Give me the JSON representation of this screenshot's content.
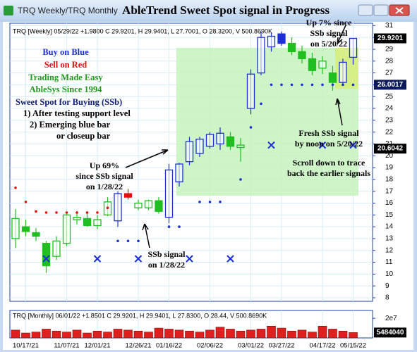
{
  "window": {
    "tab": "TRQ Weekly/TRQ Monthly"
  },
  "chart_data": [
    {
      "type": "candlestick",
      "title": "AbleTrend Sweet Spot signal in Progress",
      "header": "TRQ [Weekly] 05/29/22 +1.9800 C 29.9201, H 29.9401, L 27.7001, O 28.3200, V 500.8690K",
      "open": [
        13.0,
        14.0,
        13.5,
        12.6,
        11.5,
        12.6,
        14.6,
        14.7,
        14.1,
        15.0,
        14.5,
        16.8,
        15.6,
        15.6,
        16.2,
        14.8,
        17.8,
        19.5,
        20.2,
        20.8,
        21.0,
        21.6,
        20.7,
        24.0,
        27.0,
        29.2,
        30.3,
        29.5,
        28.8,
        28.2,
        27.4,
        27.0,
        26.2,
        28.32
      ],
      "high": [
        15.5,
        14.6,
        13.9,
        12.8,
        13.2,
        15.3,
        15.3,
        15.1,
        15.0,
        16.5,
        17.0,
        17.2,
        16.3,
        16.3,
        16.5,
        19.3,
        19.4,
        21.6,
        21.6,
        22.0,
        22.4,
        22.0,
        21.5,
        27.3,
        30.5,
        30.4,
        30.5,
        30.0,
        29.3,
        28.7,
        28.4,
        27.6,
        28.2,
        29.9401
      ],
      "low": [
        12.2,
        13.2,
        12.8,
        10.1,
        11.2,
        12.4,
        14.2,
        14.0,
        13.8,
        14.9,
        14.0,
        16.3,
        15.4,
        15.4,
        15.1,
        14.3,
        17.4,
        19.2,
        19.9,
        20.6,
        20.5,
        20.5,
        19.5,
        23.5,
        26.8,
        28.8,
        29.3,
        28.5,
        27.8,
        26.8,
        26.9,
        25.5,
        25.9,
        27.7001
      ],
      "close": [
        14.7,
        13.6,
        13.2,
        10.7,
        12.8,
        15.0,
        14.8,
        14.1,
        14.6,
        16.1,
        16.8,
        16.5,
        16.0,
        16.2,
        15.3,
        18.8,
        19.3,
        21.2,
        21.4,
        21.8,
        21.9,
        20.8,
        20.9,
        26.9,
        30.0,
        30.1,
        29.5,
        28.8,
        28.2,
        27.2,
        28.0,
        26.2,
        27.9,
        29.9201
      ],
      "colors": [
        "#1fbf1f",
        "#1fbf1f",
        "#1fbf1f",
        "#1fbf1f",
        "#1fbf1f",
        "#1fbf1f",
        "#1fbf1f",
        "#1fbf1f",
        "#1fbf1f",
        "#1fbf1f",
        "#1a2fd6",
        "#e01010",
        "#1fbf1f",
        "#1fbf1f",
        "#1fbf1f",
        "#1a2fd6",
        "#1a2fd6",
        "#1a2fd6",
        "#1a2fd6",
        "#1a2fd6",
        "#1a2fd6",
        "#1fbf1f",
        "#1fbf1f",
        "#1a2fd6",
        "#1a2fd6",
        "#1a2fd6",
        "#1a2fd6",
        "#1fbf1f",
        "#1fbf1f",
        "#1fbf1f",
        "#1fbf1f",
        "#1fbf1f",
        "#1a2fd6",
        "#1a2fd6"
      ],
      "dots": [
        {
          "color": "#e01010",
          "values": [
            17.3,
            16.1,
            15.3,
            15.2,
            15.2,
            15.2,
            15.2,
            15.2,
            15.2,
            15.6,
            null,
            null,
            null,
            null,
            null,
            null,
            null,
            null,
            null,
            null,
            null,
            null,
            null,
            null,
            null,
            null,
            null,
            null,
            null,
            null,
            null,
            null,
            null,
            null
          ]
        },
        {
          "color": "#1a2fd6",
          "values": [
            null,
            null,
            null,
            null,
            null,
            null,
            null,
            null,
            null,
            null,
            12.8,
            12.8,
            12.8,
            null,
            null,
            14.0,
            14.0,
            null,
            16.1,
            16.1,
            16.1,
            null,
            18.0,
            22.4,
            24.4,
            26.0017,
            26.0017,
            26.0017,
            26.0017,
            26.0017,
            26.0017,
            26.0017,
            26.0017,
            26.0017
          ]
        }
      ],
      "cross_marks": {
        "color": "#1a2fd6",
        "values": [
          null,
          null,
          null,
          11.3,
          null,
          null,
          null,
          null,
          11.3,
          null,
          null,
          null,
          11.3,
          null,
          null,
          null,
          null,
          11.3,
          null,
          null,
          null,
          11.3,
          null,
          null,
          null,
          20.9,
          null,
          null,
          null,
          null,
          20.9,
          null,
          null,
          20.9
        ]
      },
      "price_labels": [
        {
          "value": 29.9201,
          "color": "#000000"
        },
        {
          "value": 26.0017,
          "color": "#0a1a5c"
        },
        {
          "value": 20.6042,
          "color": "#000000"
        }
      ],
      "ylim": [
        7.7,
        31.2
      ],
      "yticks": [
        8,
        9,
        10,
        11,
        12,
        13,
        14,
        15,
        16,
        17,
        18,
        19,
        20,
        21,
        22,
        23,
        24,
        25,
        26,
        27,
        28,
        29,
        30,
        31
      ],
      "grid": true,
      "notes": [
        {
          "text": "Buy on Blue",
          "color": "#1a2fd6"
        },
        {
          "text": "Sell on Red",
          "color": "#e01010"
        },
        {
          "text": "Trading Made Easy",
          "color": "#1f9a1f"
        },
        {
          "text": "AbleSys Since 1994",
          "color": "#1f9a1f"
        },
        {
          "text": "Sweet Spot for Buying (SSb)",
          "color": "#10207a"
        },
        {
          "text": "1) After testing support level",
          "color": "#000000"
        },
        {
          "text": "2) Emerging blue bar",
          "color": "#000000"
        },
        {
          "text": "or closeup bar",
          "color": "#000000"
        }
      ],
      "annotations": [
        {
          "lines": [
            "Up 7% since",
            "SSb signal",
            "on 5/20/22"
          ]
        },
        {
          "lines": [
            "Up 69%",
            "since SSb signal",
            "on 1/28/22"
          ]
        },
        {
          "lines": [
            "SSb signal",
            "on 1/28/22"
          ]
        },
        {
          "lines": [
            "Fresh SSb signal",
            "by noon on 5/20/22"
          ]
        },
        {
          "lines": [
            "Scroll down to trace",
            "back the earlier signals"
          ]
        }
      ]
    },
    {
      "type": "bar",
      "header": "TRQ [Monthly] 06/01/22 +1.8501 C 29.9201, H 29.9401, L 27.8300, O 28.44, V 500.8690K",
      "categories": [
        null,
        "10/17/21",
        null,
        null,
        null,
        "11/07/21",
        null,
        null,
        "12/01/21",
        null,
        null,
        null,
        "12/26/21",
        null,
        null,
        "01/16/22",
        null,
        null,
        null,
        "02/06/22",
        null,
        null,
        null,
        "03/01/22",
        null,
        null,
        "03/27/22",
        null,
        null,
        null,
        "04/17/22",
        null,
        null,
        "05/15/22"
      ],
      "values": [
        8000000,
        5000000,
        6000000,
        9000000,
        7000000,
        6000000,
        8000000,
        5000000,
        7000000,
        6000000,
        9000000,
        8000000,
        7000000,
        6000000,
        10000000,
        9000000,
        8000000,
        7000000,
        6000000,
        8000000,
        11000000,
        9000000,
        7000000,
        8000000,
        9000000,
        12000000,
        10000000,
        7000000,
        8000000,
        6000000,
        12000000,
        9000000,
        7000000,
        5484040
      ],
      "color": "#e0201e",
      "ylim": [
        0,
        28000000
      ],
      "yticks": [
        {
          "value": 20000000,
          "label": "2e7"
        }
      ],
      "price_labels": [
        {
          "value": 5484040,
          "color": "#000000"
        }
      ]
    }
  ]
}
